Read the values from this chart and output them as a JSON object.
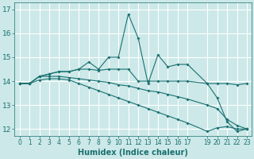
{
  "xlabel": "Humidex (Indice chaleur)",
  "bg_color": "#cce8e8",
  "grid_color": "#ffffff",
  "line_color": "#1a7070",
  "ylim": [
    11.7,
    17.3
  ],
  "xlim": [
    -0.5,
    23.5
  ],
  "yticks": [
    12,
    13,
    14,
    15,
    16,
    17
  ],
  "xtick_vals": [
    0,
    1,
    2,
    3,
    4,
    5,
    6,
    7,
    8,
    9,
    10,
    11,
    12,
    13,
    14,
    15,
    16,
    17,
    19,
    20,
    21,
    22,
    23
  ],
  "xtick_labels": [
    "0",
    "1",
    "2",
    "3",
    "4",
    "5",
    "6",
    "7",
    "8",
    "9",
    "10",
    "11",
    "12",
    "13",
    "14",
    "15",
    "16",
    "17",
    "19",
    "20",
    "21",
    "22",
    "23"
  ],
  "series": [
    {
      "x": [
        0,
        1,
        2,
        3,
        4,
        5,
        6,
        7,
        8,
        9,
        10,
        11,
        12,
        13,
        14,
        15,
        16,
        17,
        19,
        20,
        21,
        22,
        23
      ],
      "y": [
        13.9,
        13.9,
        14.2,
        14.3,
        14.4,
        14.4,
        14.5,
        14.8,
        14.5,
        15.0,
        15.0,
        16.8,
        15.8,
        13.9,
        15.1,
        14.6,
        14.7,
        14.7,
        13.9,
        13.3,
        12.3,
        11.9,
        12.0
      ]
    },
    {
      "x": [
        0,
        1,
        2,
        3,
        4,
        5,
        6,
        7,
        8,
        9,
        10,
        11,
        12,
        13,
        14,
        15,
        16,
        17,
        19,
        20,
        21,
        22,
        23
      ],
      "y": [
        13.9,
        13.9,
        14.2,
        14.3,
        14.4,
        14.4,
        14.5,
        14.5,
        14.45,
        14.5,
        14.5,
        14.5,
        14.0,
        14.0,
        14.0,
        14.0,
        14.0,
        14.0,
        13.9,
        13.9,
        13.9,
        13.85,
        13.9
      ]
    },
    {
      "x": [
        0,
        1,
        2,
        3,
        4,
        5,
        6,
        7,
        8,
        9,
        10,
        11,
        12,
        13,
        14,
        15,
        16,
        17,
        19,
        20,
        21,
        22,
        23
      ],
      "y": [
        13.9,
        13.9,
        14.2,
        14.2,
        14.2,
        14.15,
        14.1,
        14.05,
        14.0,
        13.95,
        13.85,
        13.8,
        13.7,
        13.6,
        13.55,
        13.45,
        13.35,
        13.25,
        13.0,
        12.85,
        12.4,
        12.15,
        12.0
      ]
    },
    {
      "x": [
        0,
        1,
        2,
        3,
        4,
        5,
        6,
        7,
        8,
        9,
        10,
        11,
        12,
        13,
        14,
        15,
        16,
        17,
        19,
        20,
        21,
        22,
        23
      ],
      "y": [
        13.9,
        13.9,
        14.05,
        14.1,
        14.1,
        14.05,
        13.9,
        13.75,
        13.6,
        13.45,
        13.3,
        13.15,
        13.0,
        12.85,
        12.7,
        12.55,
        12.4,
        12.25,
        11.9,
        12.05,
        12.1,
        12.0,
        12.0
      ]
    }
  ]
}
